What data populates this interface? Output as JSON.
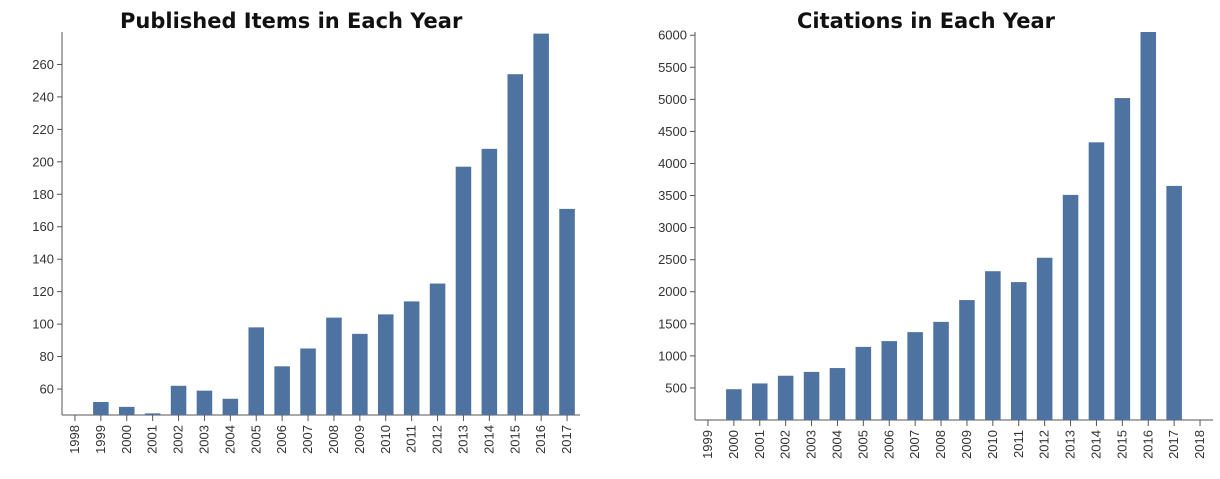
{
  "chart_data": [
    {
      "type": "bar",
      "title": "Published Items in Each Year",
      "categories": [
        "1998",
        "1999",
        "2000",
        "2001",
        "2002",
        "2003",
        "2004",
        "2005",
        "2006",
        "2007",
        "2008",
        "2009",
        "2010",
        "2011",
        "2012",
        "2013",
        "2014",
        "2015",
        "2016",
        "2017"
      ],
      "values": [
        44,
        52,
        49,
        45,
        62,
        59,
        54,
        98,
        74,
        85,
        104,
        94,
        106,
        114,
        125,
        197,
        208,
        254,
        279,
        171
      ],
      "ylim": [
        44,
        280
      ],
      "yticks": [
        60,
        80,
        100,
        120,
        140,
        160,
        180,
        200,
        220,
        240,
        260
      ],
      "xlabel": "",
      "ylabel": "",
      "bar_color": "#4e73a0",
      "grid": false
    },
    {
      "type": "bar",
      "title": "Citations in Each Year",
      "categories": [
        "1999",
        "2000",
        "2001",
        "2002",
        "2003",
        "2004",
        "2005",
        "2006",
        "2007",
        "2008",
        "2009",
        "2010",
        "2011",
        "2012",
        "2013",
        "2014",
        "2015",
        "2016",
        "2017",
        "2018"
      ],
      "values": [
        0,
        480,
        570,
        690,
        750,
        810,
        1140,
        1230,
        1370,
        1530,
        1870,
        2320,
        2150,
        2530,
        3510,
        4330,
        5020,
        6050,
        3650,
        0
      ],
      "ylim": [
        0,
        6050
      ],
      "yticks": [
        500,
        1000,
        1500,
        2000,
        2500,
        3000,
        3500,
        4000,
        4500,
        5000,
        5500,
        6000
      ],
      "xlabel": "",
      "ylabel": "",
      "bar_color": "#4e73a0",
      "grid": false
    }
  ]
}
